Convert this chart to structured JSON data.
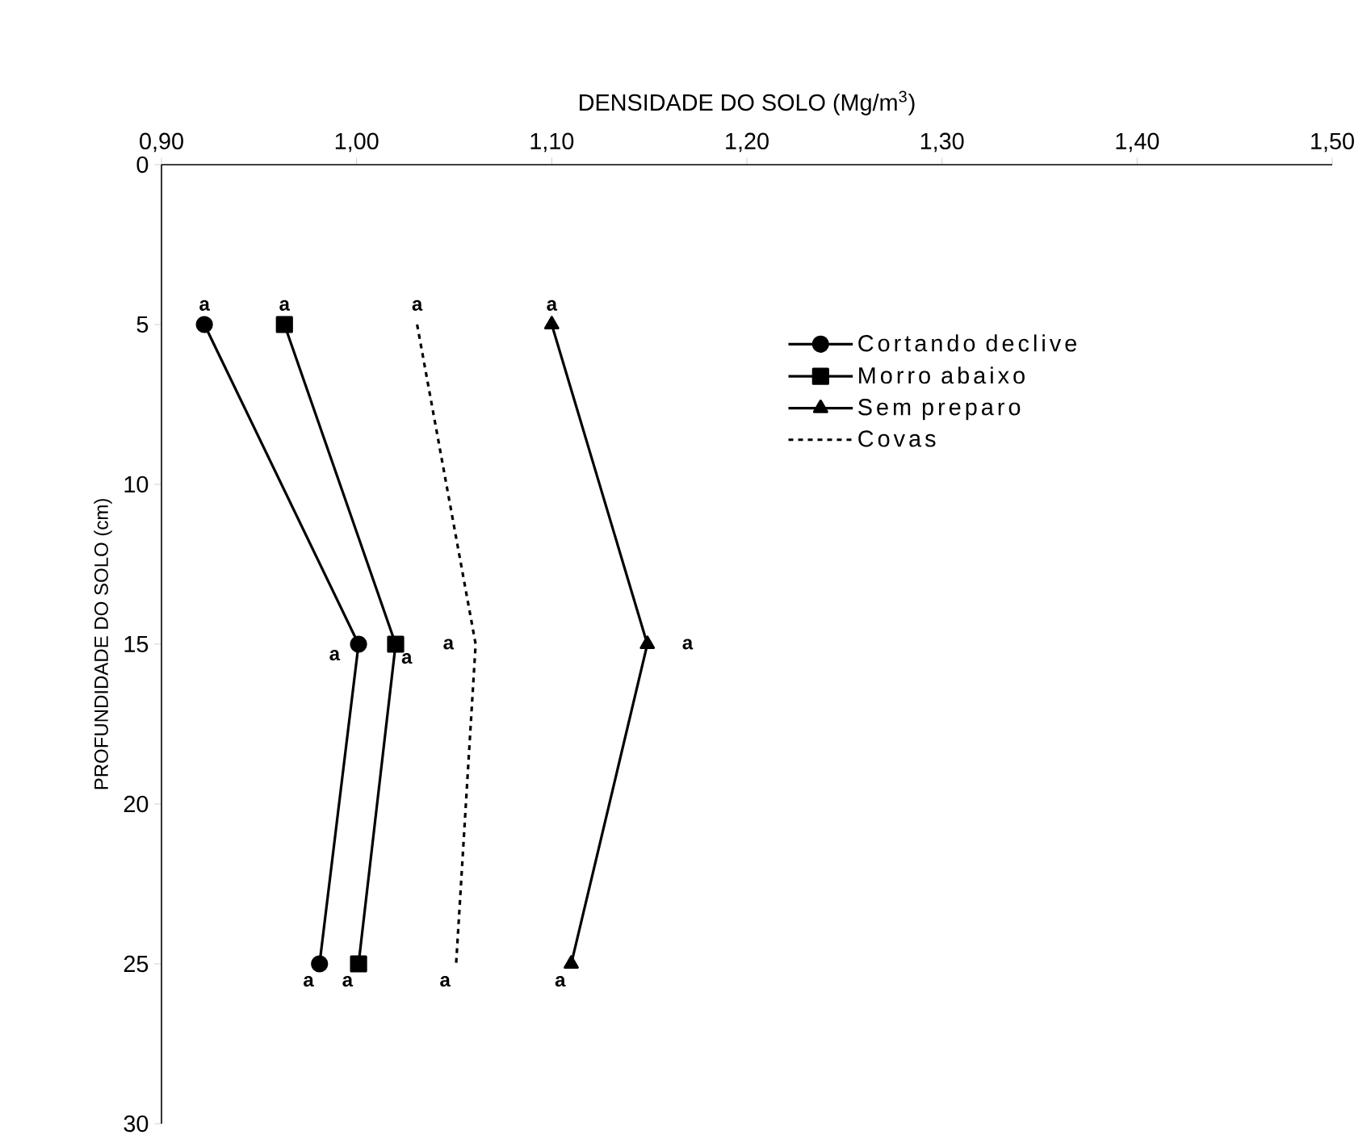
{
  "chart_data": {
    "type": "line",
    "xlabel": "DENSIDADE DO SOLO (Mg/m$^{3}$)",
    "ylabel": "PROFUNDIDADE DO SOLO (cm)",
    "xlim": [
      0.9,
      1.5
    ],
    "ylim": [
      30,
      0
    ],
    "xticks": [
      {
        "value": 0.9,
        "label": "0,90"
      },
      {
        "value": 1.0,
        "label": "1,00"
      },
      {
        "value": 1.1,
        "label": "1,10"
      },
      {
        "value": 1.2,
        "label": "1,20"
      },
      {
        "value": 1.3,
        "label": "1,30"
      },
      {
        "value": 1.4,
        "label": "1,40"
      },
      {
        "value": 1.5,
        "label": "1,50"
      }
    ],
    "yticks": [
      0,
      5,
      10,
      15,
      20,
      25,
      30
    ],
    "grid": false,
    "legend": "right",
    "series": [
      {
        "name": "Cortando declive",
        "color": "#000000",
        "marker": "circle",
        "line_style": "solid",
        "x": [
          0.922,
          1.001,
          0.981
        ],
        "values": [
          5,
          15,
          25
        ]
      },
      {
        "name": "Morro abaixo",
        "color": "#000000",
        "marker": "square",
        "line_style": "solid",
        "x": [
          0.963,
          1.02,
          1.001
        ],
        "values": [
          5,
          15,
          25
        ]
      },
      {
        "name": "Sem preparo",
        "color": "#000000",
        "marker": "triangle",
        "line_style": "solid",
        "x": [
          1.1,
          1.149,
          1.11
        ],
        "values": [
          5,
          15,
          25
        ]
      },
      {
        "name": "Covas",
        "color": "#000000",
        "marker": "none",
        "line_style": "dashed",
        "x": [
          1.031,
          1.061,
          1.051
        ],
        "values": [
          5,
          15,
          25
        ]
      }
    ],
    "annotations": [
      {
        "text": "a",
        "x": 0.922,
        "y": 5
      },
      {
        "text": "a",
        "x": 0.963,
        "y": 5
      },
      {
        "text": "a",
        "x": 1.031,
        "y": 5
      },
      {
        "text": "a",
        "x": 1.1,
        "y": 5
      },
      {
        "text": "a",
        "x": 1.001,
        "y": 15
      },
      {
        "text": "a",
        "x": 1.02,
        "y": 15
      },
      {
        "text": "a",
        "x": 1.061,
        "y": 15
      },
      {
        "text": "a",
        "x": 1.149,
        "y": 15
      },
      {
        "text": "a",
        "x": 0.981,
        "y": 25
      },
      {
        "text": "a",
        "x": 1.001,
        "y": 25
      },
      {
        "text": "a",
        "x": 1.051,
        "y": 25
      },
      {
        "text": "a",
        "x": 1.11,
        "y": 25
      }
    ]
  }
}
